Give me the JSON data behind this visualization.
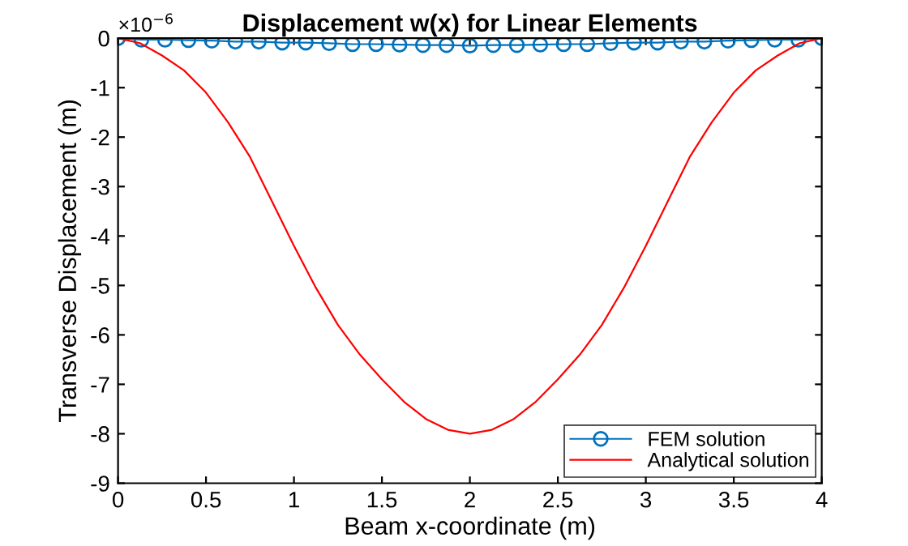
{
  "chart_data": {
    "type": "line",
    "title": "Displacement w(x) for Linear Elements",
    "xlabel": "Beam x-coordinate (m)",
    "ylabel": "Transverse Displacement (m)",
    "annotations": [
      "×10$^{−6}$"
    ],
    "xlim": [
      0,
      4
    ],
    "xticks": [
      0,
      0.5,
      1,
      1.5,
      2,
      2.5,
      3,
      3.5,
      4
    ],
    "ylim": [
      -9,
      0
    ],
    "yticks": [
      -9,
      -8,
      -7,
      -6,
      -5,
      -4,
      -3,
      -2,
      -1,
      0
    ],
    "grid": false,
    "legend": "bottom right",
    "series": [
      {
        "name": "FEM solution",
        "color": "#0072bd",
        "marker": "circle",
        "x": [
          0,
          0.133,
          0.267,
          0.4,
          0.533,
          0.667,
          0.8,
          0.933,
          1.067,
          1.2,
          1.333,
          1.467,
          1.6,
          1.733,
          1.867,
          2,
          2.133,
          2.267,
          2.4,
          2.533,
          2.667,
          2.8,
          2.933,
          3.067,
          3.2,
          3.333,
          3.467,
          3.6,
          3.733,
          3.867,
          4
        ],
        "values": [
          0,
          -0.03,
          -0.03,
          -0.04,
          -0.05,
          -0.07,
          -0.07,
          -0.09,
          -0.09,
          -0.1,
          -0.12,
          -0.12,
          -0.13,
          -0.14,
          -0.14,
          -0.15,
          -0.14,
          -0.14,
          -0.13,
          -0.12,
          -0.12,
          -0.1,
          -0.09,
          -0.09,
          -0.07,
          -0.07,
          -0.05,
          -0.04,
          -0.03,
          -0.03,
          0
        ]
      },
      {
        "name": "Analytical solution",
        "color": "#ff0000",
        "marker": "none",
        "x": [
          0,
          0.125,
          0.25,
          0.375,
          0.5,
          0.625,
          0.75,
          0.875,
          1,
          1.125,
          1.25,
          1.375,
          1.5,
          1.625,
          1.75,
          1.875,
          2,
          2.125,
          2.25,
          2.375,
          2.5,
          2.625,
          2.75,
          2.875,
          3,
          3.125,
          3.25,
          3.375,
          3.5,
          3.625,
          3.75,
          3.875,
          4
        ],
        "values": [
          0,
          -0.1,
          -0.35,
          -0.65,
          -1.1,
          -1.7,
          -2.4,
          -3.3,
          -4.2,
          -5.05,
          -5.8,
          -6.4,
          -6.9,
          -7.35,
          -7.7,
          -7.92,
          -8,
          -7.92,
          -7.7,
          -7.35,
          -6.9,
          -6.4,
          -5.8,
          -5.05,
          -4.2,
          -3.3,
          -2.4,
          -1.7,
          -1.1,
          -0.65,
          -0.35,
          -0.1,
          0
        ]
      }
    ]
  }
}
